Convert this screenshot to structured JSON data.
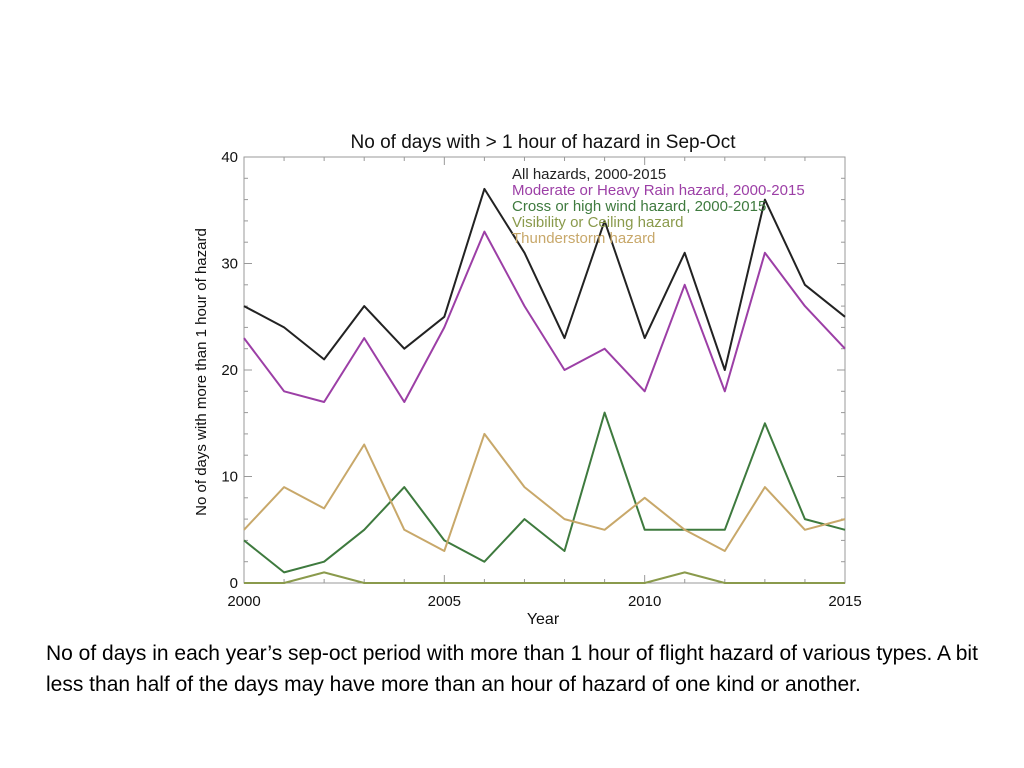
{
  "caption": "No of days in each year’s sep-oct period with more than 1 hour of flight hazard of various types.  A bit less than half of the days may have more than an hour of hazard of one kind or another.",
  "chart_data": {
    "type": "line",
    "title": "No of days with > 1 hour of hazard in Sep-Oct",
    "xlabel": "Year",
    "ylabel": "No of days with more than 1 hour of hazard",
    "xlim": [
      2000,
      2015
    ],
    "ylim": [
      0,
      40
    ],
    "x_ticks": [
      2000,
      2005,
      2010,
      2015
    ],
    "y_ticks": [
      0,
      10,
      20,
      30,
      40
    ],
    "grid": false,
    "legend_position": "top-right",
    "x": [
      2000,
      2001,
      2002,
      2003,
      2004,
      2005,
      2006,
      2007,
      2008,
      2009,
      2010,
      2011,
      2012,
      2013,
      2014,
      2015
    ],
    "series": [
      {
        "name": "All hazards, 2000-2015",
        "color": "#222222",
        "values": [
          26,
          24,
          21,
          26,
          22,
          25,
          37,
          31,
          23,
          34,
          23,
          31,
          20,
          36,
          28,
          25
        ]
      },
      {
        "name": "Moderate or Heavy Rain hazard, 2000-2015",
        "color": "#9c3fa6",
        "values": [
          23,
          18,
          17,
          23,
          17,
          24,
          33,
          26,
          20,
          22,
          18,
          28,
          18,
          31,
          26,
          22
        ]
      },
      {
        "name": "Cross or high wind hazard, 2000-2015",
        "color": "#3e7a3e",
        "values": [
          4,
          1,
          2,
          5,
          9,
          4,
          2,
          6,
          3,
          16,
          5,
          5,
          5,
          15,
          6,
          5
        ]
      },
      {
        "name": "Visibility or Ceiling hazard",
        "color": "#8a9a4c",
        "values": [
          0,
          0,
          1,
          0,
          0,
          0,
          0,
          0,
          0,
          0,
          0,
          1,
          0,
          0,
          0,
          0
        ]
      },
      {
        "name": "Thunderstorm hazard",
        "color": "#c8a86a",
        "values": [
          5,
          9,
          7,
          13,
          5,
          3,
          14,
          9,
          6,
          5,
          8,
          5,
          3,
          9,
          5,
          6
        ]
      }
    ]
  }
}
